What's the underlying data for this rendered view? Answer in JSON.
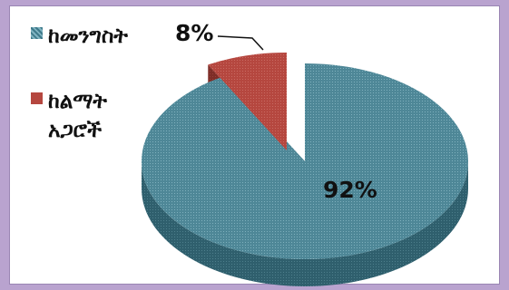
{
  "chart_data": {
    "type": "pie",
    "title": "",
    "categories": [
      "ከመንግስት",
      "ከልማት አጋሮች"
    ],
    "values": [
      92,
      8
    ],
    "data_labels": [
      "92%",
      "8%"
    ],
    "colors": [
      "#4e8797",
      "#b5473f"
    ],
    "style": "3d-exploded",
    "legend": "top-left"
  }
}
